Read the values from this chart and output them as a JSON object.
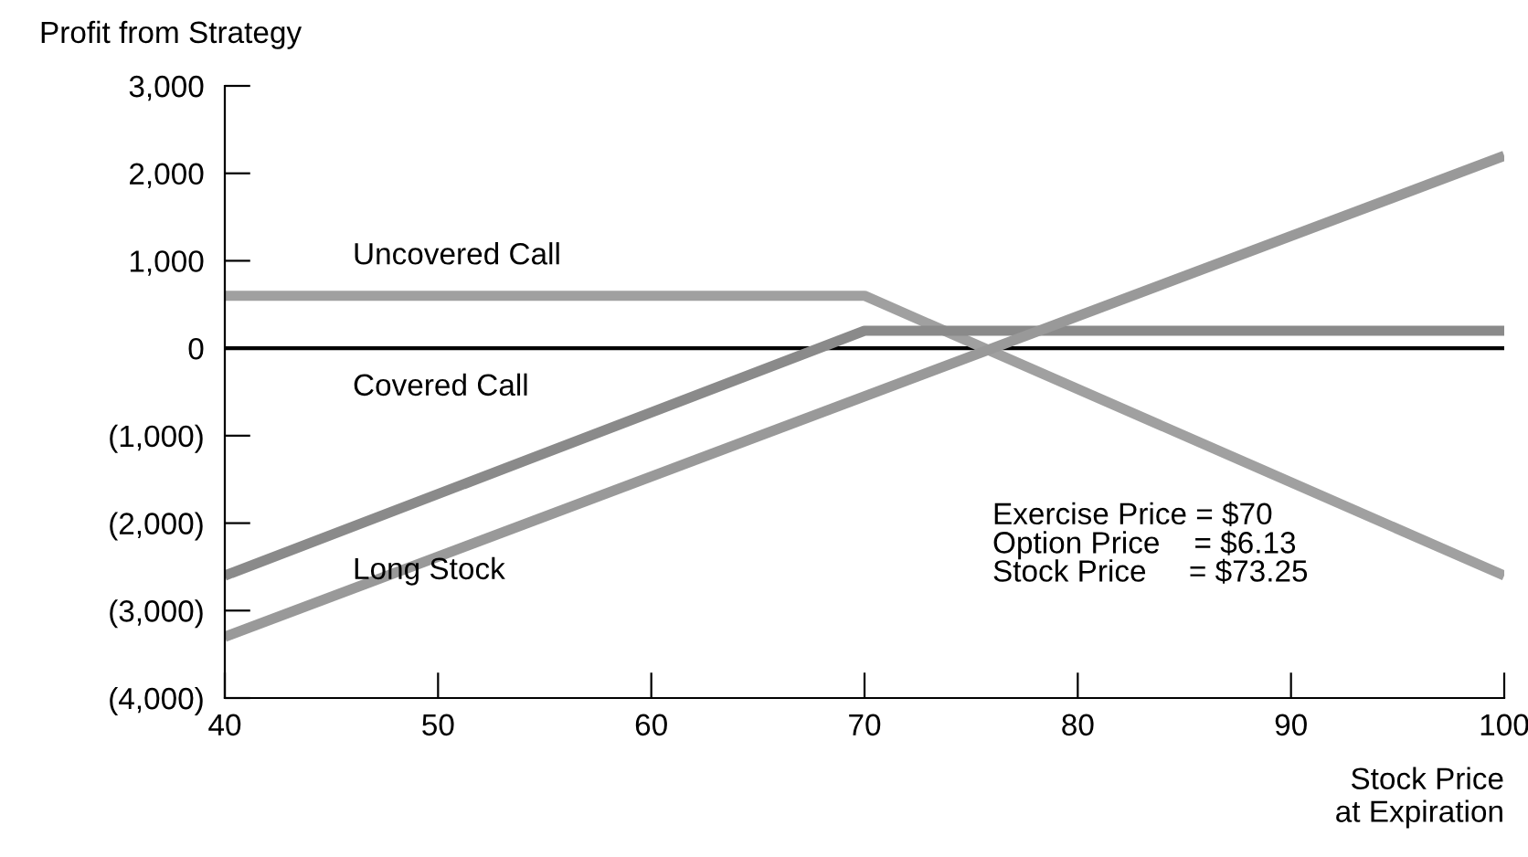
{
  "chart_data": {
    "type": "line",
    "ylabel": "Profit from Strategy",
    "xlabel": "Stock Price\nat Expiration",
    "x": [
      40,
      70,
      100
    ],
    "series": [
      {
        "name": "Uncovered Call",
        "color": "#a0a0a0",
        "values": [
          600,
          600,
          -2600
        ]
      },
      {
        "name": "Covered Call",
        "color": "#8a8a8a",
        "values": [
          -2600,
          200,
          200
        ]
      },
      {
        "name": "Long Stock",
        "color": "#999999",
        "x": [
          40,
          100
        ],
        "values": [
          -3300,
          2200
        ]
      }
    ],
    "xlim": [
      40,
      100
    ],
    "xticks": [
      40,
      50,
      60,
      70,
      80,
      90,
      100
    ],
    "ylim": [
      -4000,
      3000
    ],
    "yticks": [
      {
        "value": -4000,
        "label": "(4,000)"
      },
      {
        "value": -3000,
        "label": "(3,000)"
      },
      {
        "value": -2000,
        "label": "(2,000)"
      },
      {
        "value": -1000,
        "label": "(1,000)"
      },
      {
        "value": 0,
        "label": "0"
      },
      {
        "value": 1000,
        "label": "1,000"
      },
      {
        "value": 2000,
        "label": "2,000"
      },
      {
        "value": 3000,
        "label": "3,000"
      }
    ],
    "ref_lines": [
      {
        "axis": "y",
        "value": 0,
        "color": "#000000"
      }
    ],
    "annotations": [
      "Exercise Price = $70\nOption Price    = $6.13\nStock Price     = $73.25"
    ],
    "grid": false,
    "legend": false,
    "line_style": "solid",
    "marker": "none"
  }
}
